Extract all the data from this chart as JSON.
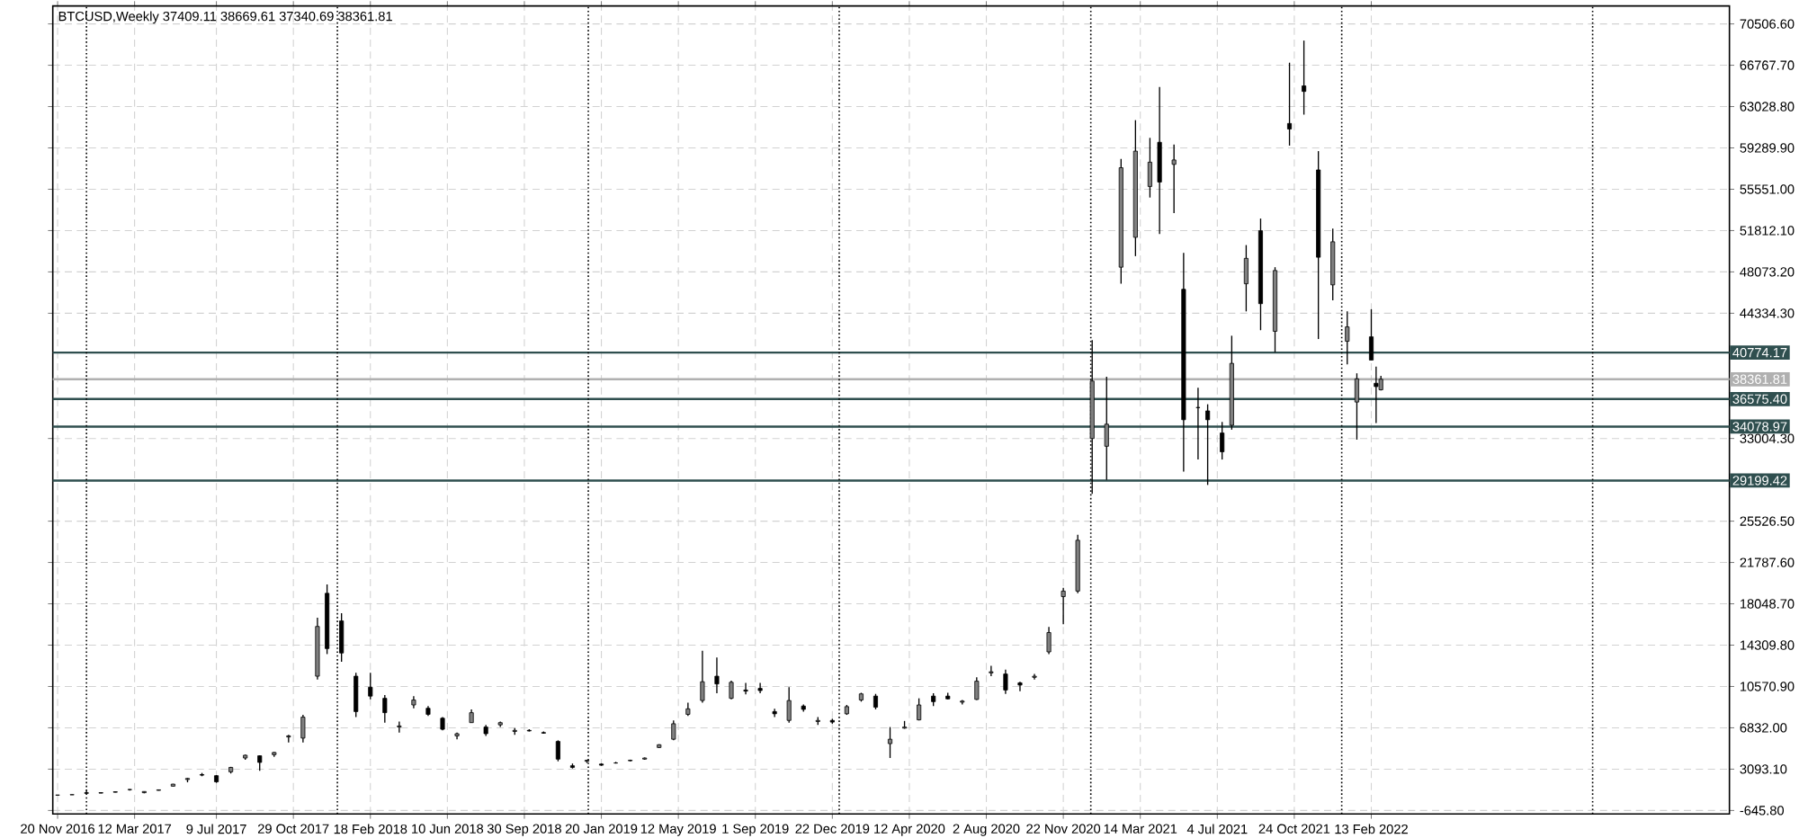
{
  "chart_data": {
    "type": "candlestick",
    "title": "BTCUSD,Weekly  37409.11 38669.61 37340.69 38361.81",
    "x": [
      "2016-11-20",
      "2016-12-11",
      "2017-01-01",
      "2017-01-22",
      "2017-02-12",
      "2017-03-05",
      "2017-03-26",
      "2017-04-16",
      "2017-05-07",
      "2017-05-28",
      "2017-06-18",
      "2017-07-09",
      "2017-07-30",
      "2017-08-20",
      "2017-09-10",
      "2017-10-01",
      "2017-10-22",
      "2017-11-12",
      "2017-12-03",
      "2017-12-17",
      "2018-01-07",
      "2018-01-28",
      "2018-02-18",
      "2018-03-11",
      "2018-04-01",
      "2018-04-22",
      "2018-05-13",
      "2018-06-03",
      "2018-06-24",
      "2018-07-15",
      "2018-08-05",
      "2018-08-26",
      "2018-09-16",
      "2018-10-07",
      "2018-10-28",
      "2018-11-18",
      "2018-12-09",
      "2018-12-30",
      "2019-01-20",
      "2019-02-10",
      "2019-03-03",
      "2019-03-24",
      "2019-04-14",
      "2019-05-05",
      "2019-05-26",
      "2019-06-16",
      "2019-07-07",
      "2019-07-28",
      "2019-08-18",
      "2019-09-08",
      "2019-09-29",
      "2019-10-20",
      "2019-11-10",
      "2019-12-01",
      "2019-12-22",
      "2020-01-12",
      "2020-02-02",
      "2020-02-23",
      "2020-03-15",
      "2020-04-05",
      "2020-04-26",
      "2020-05-17",
      "2020-06-07",
      "2020-06-28",
      "2020-07-19",
      "2020-08-09",
      "2020-08-30",
      "2020-09-20",
      "2020-10-11",
      "2020-11-01",
      "2020-11-22",
      "2020-12-13",
      "2021-01-03",
      "2021-01-24",
      "2021-02-14",
      "2021-03-07",
      "2021-03-28",
      "2021-04-11",
      "2021-05-02",
      "2021-05-16",
      "2021-06-06",
      "2021-06-20",
      "2021-07-11",
      "2021-07-25",
      "2021-08-15",
      "2021-09-05",
      "2021-09-26",
      "2021-10-17",
      "2021-11-07",
      "2021-11-28",
      "2021-12-19",
      "2022-01-09",
      "2022-01-23",
      "2022-02-13",
      "2022-02-20",
      "2022-02-27"
    ],
    "ohlc": [
      [
        740,
        760,
        725,
        750
      ],
      [
        770,
        790,
        765,
        785
      ],
      [
        960,
        1150,
        890,
        905
      ],
      [
        920,
        990,
        910,
        970
      ],
      [
        1000,
        1060,
        990,
        1050
      ],
      [
        1250,
        1280,
        1150,
        1240
      ],
      [
        960,
        1080,
        900,
        1070
      ],
      [
        1170,
        1230,
        1160,
        1220
      ],
      [
        1550,
        1760,
        1540,
        1740
      ],
      [
        2150,
        2300,
        1900,
        2250
      ],
      [
        2600,
        2750,
        2450,
        2550
      ],
      [
        2500,
        2550,
        1850,
        1950
      ],
      [
        2850,
        3300,
        2700,
        3250
      ],
      [
        4100,
        4400,
        3950,
        4350
      ],
      [
        4300,
        4350,
        2950,
        3700
      ],
      [
        4400,
        4650,
        4200,
        4600
      ],
      [
        6000,
        6200,
        5500,
        6100
      ],
      [
        5900,
        8000,
        5500,
        7800
      ],
      [
        11500,
        16800,
        11200,
        16000
      ],
      [
        19000,
        19800,
        13500,
        14000
      ],
      [
        16500,
        17200,
        12800,
        13600
      ],
      [
        11500,
        11800,
        7800,
        8300
      ],
      [
        10500,
        11800,
        9400,
        9700
      ],
      [
        9500,
        9800,
        7300,
        8200
      ],
      [
        6900,
        7400,
        6400,
        7000
      ],
      [
        8900,
        9700,
        8600,
        9350
      ],
      [
        8600,
        8800,
        7900,
        8050
      ],
      [
        7700,
        7800,
        6600,
        6700
      ],
      [
        6100,
        6400,
        5800,
        6300
      ],
      [
        7300,
        8500,
        7300,
        8200
      ],
      [
        6900,
        7100,
        6100,
        6300
      ],
      [
        7100,
        7400,
        6900,
        7300
      ],
      [
        6500,
        6800,
        6200,
        6600
      ],
      [
        6600,
        6700,
        6500,
        6550
      ],
      [
        6400,
        6500,
        6300,
        6350
      ],
      [
        5600,
        5700,
        3800,
        4000
      ],
      [
        3400,
        3600,
        3150,
        3250
      ],
      [
        3800,
        3950,
        3650,
        3900
      ],
      [
        3550,
        3620,
        3400,
        3450
      ],
      [
        3650,
        3750,
        3600,
        3650
      ],
      [
        3850,
        3950,
        3800,
        3900
      ],
      [
        4000,
        4150,
        3950,
        4100
      ],
      [
        5050,
        5350,
        5000,
        5300
      ],
      [
        5800,
        7500,
        5700,
        7200
      ],
      [
        8050,
        9100,
        7900,
        8550
      ],
      [
        9300,
        13800,
        9100,
        11000
      ],
      [
        11500,
        13200,
        9950,
        10800
      ],
      [
        9500,
        11100,
        9400,
        10950
      ],
      [
        10250,
        10900,
        9850,
        10150
      ],
      [
        10400,
        10900,
        9950,
        10200
      ],
      [
        8300,
        8550,
        7800,
        8100
      ],
      [
        7500,
        10500,
        7300,
        9300
      ],
      [
        8800,
        8950,
        8300,
        8500
      ],
      [
        7400,
        7800,
        7100,
        7500
      ],
      [
        7500,
        7650,
        7200,
        7350
      ],
      [
        8100,
        8900,
        8000,
        8750
      ],
      [
        9350,
        10000,
        9200,
        9900
      ],
      [
        9700,
        9900,
        8500,
        8700
      ],
      [
        5400,
        6900,
        4100,
        5800
      ],
      [
        6800,
        7450,
        6750,
        6900
      ],
      [
        7550,
        9500,
        7500,
        8900
      ],
      [
        9700,
        9950,
        8800,
        9200
      ],
      [
        9700,
        10000,
        9400,
        9450
      ],
      [
        9150,
        9350,
        8950,
        9250
      ],
      [
        9400,
        11400,
        9350,
        11050
      ],
      [
        11800,
        12450,
        11500,
        11900
      ],
      [
        11700,
        12100,
        9900,
        10250
      ],
      [
        10900,
        11000,
        10150,
        10700
      ],
      [
        11400,
        11700,
        11200,
        11500
      ],
      [
        13700,
        15950,
        13500,
        15450
      ],
      [
        18700,
        19500,
        16200,
        19200
      ],
      [
        19200,
        24300,
        19000,
        23800
      ],
      [
        33000,
        41900,
        28000,
        38200
      ],
      [
        32300,
        38600,
        29250,
        34300
      ],
      [
        48500,
        58300,
        47000,
        57500
      ],
      [
        51200,
        61800,
        49500,
        59000
      ],
      [
        55800,
        60200,
        54800,
        58000
      ],
      [
        59800,
        64800,
        51500,
        56200
      ],
      [
        57800,
        59600,
        53400,
        58200
      ],
      [
        46500,
        49800,
        30000,
        34700
      ],
      [
        35800,
        37600,
        31100,
        35800
      ],
      [
        35500,
        36100,
        28800,
        34700
      ],
      [
        33500,
        34500,
        31100,
        31800
      ],
      [
        34200,
        42300,
        33800,
        39800
      ],
      [
        47000,
        50500,
        44500,
        49300
      ],
      [
        51800,
        52900,
        42800,
        45200
      ],
      [
        42700,
        48500,
        40800,
        48200
      ],
      [
        61500,
        67000,
        59500,
        61000
      ],
      [
        64900,
        69000,
        62300,
        64400
      ],
      [
        57300,
        59000,
        42000,
        49400
      ],
      [
        46900,
        52000,
        45500,
        50800
      ],
      [
        41800,
        44500,
        39700,
        43100
      ],
      [
        36300,
        38900,
        32900,
        38400
      ],
      [
        42200,
        44700,
        40100,
        40100
      ],
      [
        38000,
        39500,
        34400,
        37700
      ],
      [
        37409.11,
        38669.61,
        37340.69,
        38361.81
      ]
    ],
    "xlim": [
      "2016-11-13",
      "2023-07-19"
    ],
    "ylim": [
      -965,
      72130
    ],
    "xticks": [
      {
        "value": "2016-11-20",
        "label": "20 Nov 2016"
      },
      {
        "value": "2017-03-12",
        "label": "12 Mar 2017"
      },
      {
        "value": "2017-07-09",
        "label": "9 Jul 2017"
      },
      {
        "value": "2017-10-29",
        "label": "29 Oct 2017"
      },
      {
        "value": "2018-02-18",
        "label": "18 Feb 2018"
      },
      {
        "value": "2018-06-10",
        "label": "10 Jun 2018"
      },
      {
        "value": "2018-09-30",
        "label": "30 Sep 2018"
      },
      {
        "value": "2019-01-20",
        "label": "20 Jan 2019"
      },
      {
        "value": "2019-05-12",
        "label": "12 May 2019"
      },
      {
        "value": "2019-09-01",
        "label": "1 Sep 2019"
      },
      {
        "value": "2019-12-22",
        "label": "22 Dec 2019"
      },
      {
        "value": "2020-04-12",
        "label": "12 Apr 2020"
      },
      {
        "value": "2020-08-02",
        "label": "2 Aug 2020"
      },
      {
        "value": "2020-11-22",
        "label": "22 Nov 2020"
      },
      {
        "value": "2021-03-14",
        "label": "14 Mar 2021"
      },
      {
        "value": "2021-07-04",
        "label": "4 Jul 2021"
      },
      {
        "value": "2021-10-24",
        "label": "24 Oct 2021"
      },
      {
        "value": "2022-02-13",
        "label": "13 Feb 2022"
      }
    ],
    "yticks": [
      {
        "value": -645.8,
        "label": "-645.80"
      },
      {
        "value": 3093.1,
        "label": "3093.10"
      },
      {
        "value": 6832,
        "label": "6832.00"
      },
      {
        "value": 10570.9,
        "label": "10570.90"
      },
      {
        "value": 14309.8,
        "label": "14309.80"
      },
      {
        "value": 18048.7,
        "label": "18048.70"
      },
      {
        "value": 21787.6,
        "label": "21787.60"
      },
      {
        "value": 25526.5,
        "label": "25526.50"
      },
      {
        "value": 33004.3,
        "label": "33004.30"
      },
      {
        "value": 44334.3,
        "label": "44334.30"
      },
      {
        "value": 48073.2,
        "label": "48073.20"
      },
      {
        "value": 51812.1,
        "label": "51812.10"
      },
      {
        "value": 55551,
        "label": "55551.00"
      },
      {
        "value": 59289.9,
        "label": "59289.90"
      },
      {
        "value": 63028.8,
        "label": "63028.80"
      },
      {
        "value": 66767.7,
        "label": "66767.70"
      },
      {
        "value": 70506.6,
        "label": "70506.60"
      }
    ],
    "grid": true,
    "ref_lines": [
      {
        "axis": "y",
        "value": 40774.17,
        "label": "40774.17",
        "color": "#2f4f4f"
      },
      {
        "axis": "y",
        "value": 38361.81,
        "label": "38361.81",
        "color": "#b0b0b0"
      },
      {
        "axis": "y",
        "value": 36575.4,
        "label": "36575.40",
        "color": "#2f4f4f"
      },
      {
        "axis": "y",
        "value": 34078.97,
        "label": "34078.97",
        "color": "#2f4f4f"
      },
      {
        "axis": "y",
        "value": 29199.42,
        "label": "29199.42",
        "color": "#2f4f4f"
      },
      {
        "axis": "x",
        "value": "2017-01-01",
        "line_style": "dotted",
        "color": "#000000"
      },
      {
        "axis": "x",
        "value": "2018-01-01",
        "line_style": "dotted",
        "color": "#000000"
      },
      {
        "axis": "x",
        "value": "2019-01-01",
        "line_style": "dotted",
        "color": "#000000"
      },
      {
        "axis": "x",
        "value": "2020-01-01",
        "line_style": "dotted",
        "color": "#000000"
      },
      {
        "axis": "x",
        "value": "2021-01-01",
        "line_style": "dotted",
        "color": "#000000"
      },
      {
        "axis": "x",
        "value": "2022-01-01",
        "line_style": "dotted",
        "color": "#000000"
      },
      {
        "axis": "x",
        "value": "2023-01-01",
        "line_style": "dotted",
        "color": "#000000"
      }
    ]
  }
}
